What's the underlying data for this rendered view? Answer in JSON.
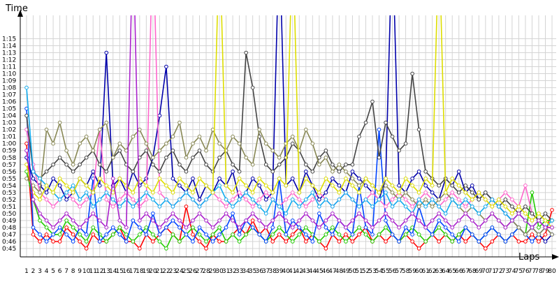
{
  "chart_data": {
    "type": "line",
    "y_label": "Time",
    "x_label": "Laps",
    "grid": true,
    "x": [
      1,
      2,
      3,
      4,
      5,
      6,
      7,
      8,
      9,
      10,
      11,
      12,
      13,
      14,
      15,
      16,
      17,
      18,
      19,
      20,
      21,
      22,
      23,
      24,
      25,
      26,
      27,
      28,
      29,
      30,
      31,
      32,
      33,
      34,
      35,
      36,
      37,
      38,
      39,
      40,
      41,
      42,
      43,
      44,
      45,
      46,
      47,
      48,
      49,
      50,
      51,
      52,
      53,
      54,
      55,
      56,
      57,
      58,
      59,
      60,
      61,
      62,
      63,
      64,
      65,
      66,
      67,
      68,
      69,
      70,
      71,
      72,
      73,
      74,
      75,
      76,
      77,
      78,
      79,
      80
    ],
    "xlim": [
      0,
      80
    ],
    "xticks": [
      1,
      2,
      3,
      4,
      5,
      6,
      7,
      8,
      9,
      10,
      11,
      12,
      13,
      14,
      15,
      16,
      17,
      18,
      19,
      20,
      21,
      22,
      23,
      24,
      25,
      26,
      27,
      28,
      29,
      30,
      31,
      32,
      33,
      34,
      35,
      36,
      37,
      38,
      39,
      40,
      41,
      42,
      43,
      44,
      45,
      46,
      47,
      48,
      49,
      50,
      51,
      52,
      53,
      54,
      55,
      56,
      57,
      58,
      59,
      60,
      61,
      62,
      63,
      64,
      65,
      66,
      67,
      68,
      69,
      70,
      71,
      72,
      73,
      74,
      75,
      76,
      77,
      78,
      79,
      80
    ],
    "ylim": [
      43.8,
      78
    ],
    "yticks": [
      {
        "value": 45,
        "label": "0:45"
      },
      {
        "value": 46,
        "label": "0:46"
      },
      {
        "value": 47,
        "label": "0:47"
      },
      {
        "value": 48,
        "label": "0:48"
      },
      {
        "value": 49,
        "label": "0:49"
      },
      {
        "value": 50,
        "label": "0:50"
      },
      {
        "value": 51,
        "label": "0:51"
      },
      {
        "value": 52,
        "label": "0:52"
      },
      {
        "value": 53,
        "label": "0:53"
      },
      {
        "value": 54,
        "label": "0:54"
      },
      {
        "value": 55,
        "label": "0:55"
      },
      {
        "value": 56,
        "label": "0:56"
      },
      {
        "value": 57,
        "label": "0:57"
      },
      {
        "value": 58,
        "label": "0:58"
      },
      {
        "value": 59,
        "label": "0:59"
      },
      {
        "value": 60,
        "label": "1:00"
      },
      {
        "value": 61,
        "label": "1:01"
      },
      {
        "value": 62,
        "label": "1:02"
      },
      {
        "value": 63,
        "label": "1:03"
      },
      {
        "value": 64,
        "label": "1:04"
      },
      {
        "value": 65,
        "label": "1:05"
      },
      {
        "value": 66,
        "label": "1:06"
      },
      {
        "value": 67,
        "label": "1:07"
      },
      {
        "value": 68,
        "label": "1:08"
      },
      {
        "value": 69,
        "label": "1:09"
      },
      {
        "value": 70,
        "label": "1:10"
      },
      {
        "value": 71,
        "label": "1:11"
      },
      {
        "value": 72,
        "label": "1:12"
      },
      {
        "value": 73,
        "label": "1:13"
      },
      {
        "value": 74,
        "label": "1:14"
      },
      {
        "value": 75,
        "label": "1:15"
      }
    ],
    "series": [
      {
        "color": "#ff0000",
        "values": [
          60,
          47,
          46,
          47,
          46,
          46,
          48,
          47,
          46,
          45,
          47,
          46,
          46,
          47,
          48,
          46,
          46,
          45,
          47,
          46,
          47,
          48,
          47,
          46,
          51,
          47,
          46,
          45,
          47,
          46,
          46,
          47,
          48,
          47,
          49,
          47,
          48,
          46,
          47,
          46,
          47,
          48,
          46,
          47,
          46,
          45,
          47,
          46,
          47,
          46,
          47,
          48,
          46,
          47,
          46,
          47,
          46,
          47,
          46,
          45,
          46,
          47,
          46,
          47,
          46,
          47,
          46,
          47,
          46,
          45,
          46,
          47,
          46,
          47,
          46,
          46,
          47,
          46,
          47,
          50.5
        ]
      },
      {
        "color": "#22cc00",
        "values": [
          56,
          52,
          49,
          48,
          47,
          47,
          49,
          48,
          47,
          46,
          48,
          47,
          46,
          47,
          48,
          47,
          46,
          47,
          48,
          47,
          46,
          45,
          47,
          46,
          47,
          48,
          47,
          46,
          47,
          48,
          46,
          47,
          46,
          47,
          48,
          47,
          46,
          47,
          48,
          47,
          46,
          47,
          48,
          47,
          46,
          47,
          48,
          47,
          46,
          47,
          48,
          47,
          46,
          47,
          48,
          47,
          46,
          47,
          48,
          47,
          46,
          47,
          48,
          47,
          46,
          47,
          48,
          47,
          46,
          47,
          48,
          47,
          46,
          47,
          48,
          47,
          53,
          48,
          49,
          49
        ]
      },
      {
        "color": "#0044ff",
        "values": [
          65,
          48,
          47,
          46,
          47,
          48,
          47,
          46,
          48,
          47,
          55,
          46,
          47,
          48,
          47,
          46,
          49,
          48,
          47,
          50,
          47,
          48,
          49,
          48,
          47,
          46,
          48,
          47,
          46,
          47,
          48,
          50,
          47,
          49,
          48,
          47,
          46,
          48,
          55,
          47,
          49,
          48,
          47,
          46,
          50,
          48,
          47,
          49,
          48,
          47,
          54,
          48,
          47,
          62,
          49,
          47,
          46,
          48,
          47,
          51,
          48,
          47,
          49,
          48,
          47,
          46,
          48,
          47,
          46,
          47,
          48,
          47,
          46,
          47,
          48,
          47,
          46,
          47,
          48,
          47
        ]
      },
      {
        "color": "#0000aa",
        "values": [
          58,
          55,
          54,
          53,
          55,
          54,
          52,
          53,
          55,
          54,
          56,
          54,
          73,
          54,
          55,
          53,
          56,
          54,
          55,
          58,
          64,
          71,
          55,
          54,
          53,
          55,
          52,
          54,
          53,
          55,
          54,
          56,
          52,
          53,
          55,
          54,
          52,
          53,
          90,
          54,
          55,
          53,
          56,
          54,
          52,
          53,
          55,
          54,
          53,
          56,
          55,
          54,
          53,
          52,
          55,
          90,
          54,
          53,
          55,
          56,
          54,
          53,
          52,
          55,
          54,
          56,
          53,
          54,
          52,
          53,
          52,
          51,
          50,
          49,
          48,
          47,
          48,
          47,
          46,
          47
        ]
      },
      {
        "color": "#ff66cc",
        "values": [
          62,
          57,
          53,
          52,
          51,
          52,
          53,
          52,
          51,
          52,
          53,
          62,
          52,
          51,
          52,
          53,
          52,
          51,
          52,
          90,
          53,
          52,
          51,
          52,
          53,
          52,
          51,
          52,
          53,
          52,
          51,
          52,
          53,
          52,
          51,
          52,
          53,
          52,
          51,
          52,
          53,
          52,
          51,
          52,
          53,
          52,
          51,
          52,
          53,
          52,
          51,
          52,
          53,
          52,
          51,
          52,
          53,
          52,
          51,
          52,
          53,
          52,
          51,
          52,
          53,
          52,
          51,
          52,
          53,
          52,
          51,
          52,
          53,
          52,
          51,
          54,
          50,
          49,
          48,
          48
        ]
      },
      {
        "color": "#444444",
        "values": [
          64,
          56,
          55,
          56,
          57,
          58,
          57,
          56,
          57,
          58,
          59,
          57,
          56,
          58,
          59,
          57,
          56,
          58,
          59,
          57,
          56,
          58,
          59,
          57,
          56,
          58,
          59,
          57,
          56,
          58,
          59,
          57,
          56,
          73,
          68,
          61,
          57,
          56,
          57,
          58,
          60,
          59,
          57,
          56,
          58,
          59,
          57,
          56,
          57,
          57,
          61,
          63,
          66,
          58,
          63,
          61,
          59,
          60,
          70,
          62,
          56,
          55,
          54,
          55,
          54,
          53,
          54,
          53,
          52,
          53,
          52,
          51,
          52,
          51,
          50,
          51,
          50,
          49,
          50,
          49
        ]
      },
      {
        "color": "#888855",
        "values": [
          55,
          54,
          53,
          62,
          60,
          63,
          59,
          57,
          60,
          61,
          59,
          62,
          63,
          58,
          60,
          59,
          61,
          62,
          60,
          58,
          59,
          60,
          61,
          63,
          58,
          60,
          61,
          59,
          62,
          60,
          59,
          61,
          60,
          58,
          57,
          62,
          60,
          59,
          58,
          60,
          61,
          59,
          62,
          60,
          57,
          58,
          56,
          57,
          56,
          55,
          54,
          55,
          54,
          53,
          54,
          53,
          52,
          53,
          52,
          51,
          52,
          51,
          52,
          53,
          52,
          51,
          50,
          51,
          50,
          49,
          50,
          49,
          48,
          49,
          48,
          47,
          48,
          47,
          48,
          47
        ]
      },
      {
        "color": "#11aaee",
        "values": [
          68,
          56,
          55,
          54,
          53,
          52,
          53,
          54,
          52,
          53,
          51,
          52,
          53,
          52,
          51,
          52,
          51,
          52,
          53,
          52,
          51,
          52,
          51,
          52,
          53,
          52,
          51,
          52,
          53,
          54,
          52,
          51,
          52,
          53,
          52,
          51,
          50,
          52,
          51,
          50,
          52,
          51,
          52,
          53,
          51,
          52,
          51,
          52,
          53,
          52,
          51,
          52,
          51,
          52,
          53,
          51,
          52,
          51,
          50,
          52,
          51,
          52,
          51,
          50,
          52,
          51,
          52,
          51,
          50,
          51,
          52,
          51,
          50,
          49,
          50,
          49,
          48,
          49,
          48,
          49
        ]
      },
      {
        "color": "#dddd00",
        "values": [
          57,
          53,
          52,
          54,
          53,
          55,
          54,
          53,
          55,
          54,
          53,
          55,
          54,
          53,
          55,
          54,
          53,
          55,
          54,
          53,
          55,
          54,
          53,
          55,
          54,
          53,
          55,
          54,
          53,
          90,
          54,
          53,
          55,
          54,
          53,
          55,
          54,
          53,
          55,
          54,
          90,
          53,
          55,
          54,
          53,
          55,
          54,
          53,
          55,
          54,
          53,
          55,
          54,
          53,
          55,
          54,
          53,
          55,
          54,
          53,
          55,
          54,
          90,
          53,
          55,
          54,
          53,
          52,
          53,
          52,
          51,
          52,
          51,
          50,
          51,
          50,
          49,
          50,
          49,
          48
        ]
      },
      {
        "color": "#aa22cc",
        "values": [
          59,
          52,
          50,
          49,
          48,
          49,
          50,
          49,
          48,
          49,
          50,
          49,
          48,
          55,
          49,
          48,
          90,
          49,
          50,
          49,
          48,
          49,
          50,
          49,
          48,
          49,
          50,
          49,
          48,
          49,
          50,
          49,
          48,
          49,
          50,
          49,
          48,
          49,
          50,
          49,
          48,
          49,
          50,
          49,
          48,
          49,
          50,
          49,
          48,
          49,
          50,
          49,
          48,
          49,
          50,
          49,
          48,
          49,
          50,
          49,
          48,
          49,
          50,
          49,
          48,
          49,
          50,
          49,
          48,
          49,
          50,
          49,
          48,
          49,
          50,
          49,
          48,
          49,
          48,
          48
        ]
      }
    ]
  }
}
